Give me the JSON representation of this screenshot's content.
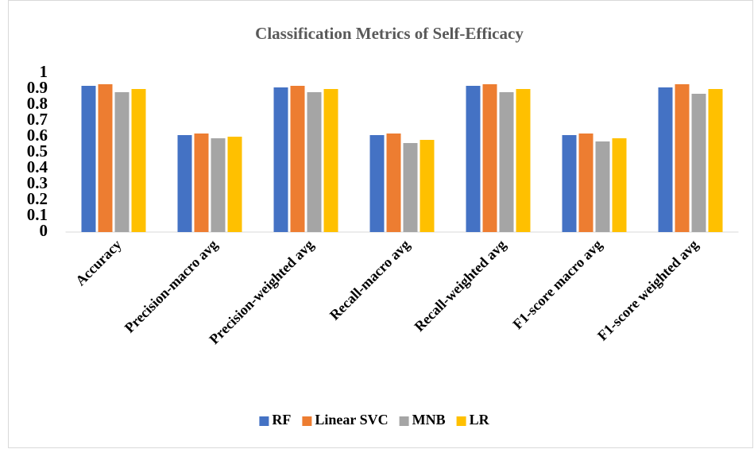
{
  "chart_data": {
    "type": "bar",
    "title": "Classification Metrics of Self-Efficacy",
    "categories": [
      "Accuracy",
      "Precision-macro avg",
      "Precision-weighted avg",
      "Recall-macro avg",
      "Recall-weighted avg",
      "F1-score macro avg",
      "F1-score weighted avg"
    ],
    "series": [
      {
        "name": "RF",
        "color": "#4472c4",
        "values": [
          0.92,
          0.61,
          0.91,
          0.61,
          0.92,
          0.61,
          0.91
        ]
      },
      {
        "name": "Linear SVC",
        "color": "#ed7d31",
        "values": [
          0.93,
          0.62,
          0.92,
          0.62,
          0.93,
          0.62,
          0.93
        ]
      },
      {
        "name": "MNB",
        "color": "#a5a5a5",
        "values": [
          0.88,
          0.59,
          0.88,
          0.56,
          0.88,
          0.57,
          0.87
        ]
      },
      {
        "name": "LR",
        "color": "#ffc000",
        "values": [
          0.9,
          0.6,
          0.9,
          0.58,
          0.9,
          0.59,
          0.9
        ]
      }
    ],
    "ylim": [
      0,
      1
    ],
    "yticks": [
      0,
      0.1,
      0.2,
      0.3,
      0.4,
      0.5,
      0.6,
      0.7,
      0.8,
      0.9,
      1
    ],
    "grid": false,
    "legend": "bottom"
  }
}
